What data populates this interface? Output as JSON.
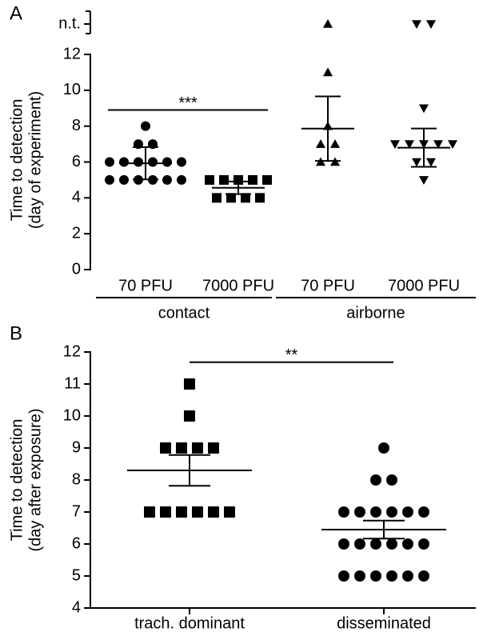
{
  "chart_data": [
    {
      "type": "dotplot",
      "panel": "A",
      "y_label": [
        "Time to detection",
        "(day of experiment)"
      ],
      "categories": [
        "70 PFU",
        "7000 PFU",
        "70 PFU",
        "7000 PFU"
      ],
      "groups": [
        {
          "label": "contact",
          "categories": [
            0,
            1
          ]
        },
        {
          "label": "airborne",
          "categories": [
            2,
            3
          ]
        }
      ],
      "markers": [
        "circle",
        "square",
        "triangle",
        "triangle-down"
      ],
      "points": [
        [
          8,
          7,
          7,
          6,
          6,
          6,
          6,
          6,
          6,
          5,
          5,
          5,
          5,
          5,
          5
        ],
        [
          5,
          5,
          5,
          5,
          5,
          4,
          4,
          4,
          4
        ],
        [
          11,
          8,
          7,
          7,
          6,
          6
        ],
        [
          9,
          7,
          7,
          7,
          7,
          7,
          6,
          6,
          5
        ]
      ],
      "means": [
        5.93,
        4.56,
        7.86,
        6.8
      ],
      "errors": [
        0.9,
        0.35,
        1.8,
        1.07
      ],
      "break_label": "n.t.",
      "break_counts": [
        0,
        0,
        1,
        2
      ],
      "ylim": [
        0,
        12
      ],
      "yticks": [
        0,
        2,
        4,
        6,
        8,
        10,
        12
      ],
      "significance": [
        {
          "label": "***",
          "y": 8.9
        }
      ],
      "color": "#000000"
    },
    {
      "type": "dotplot",
      "panel": "B",
      "y_label": [
        "Time to detection",
        "(day after exposure)"
      ],
      "categories": [
        "trach. dominant",
        "disseminated"
      ],
      "markers": [
        "square",
        "circle"
      ],
      "points": [
        [
          11,
          10,
          9,
          9,
          9,
          9,
          7,
          7,
          7,
          7,
          7,
          7
        ],
        [
          9,
          8,
          8,
          7,
          7,
          7,
          7,
          7,
          7,
          6,
          6,
          6,
          6,
          6,
          6,
          5,
          5,
          5,
          5,
          5,
          5
        ]
      ],
      "means": [
        8.3,
        6.45
      ],
      "errors": [
        0.48,
        0.28
      ],
      "ylim": [
        4,
        12
      ],
      "yticks": [
        4,
        5,
        6,
        7,
        8,
        9,
        10,
        11,
        12
      ],
      "significance": [
        {
          "label": "**",
          "y": 11.68
        }
      ],
      "color": "#000000"
    }
  ]
}
